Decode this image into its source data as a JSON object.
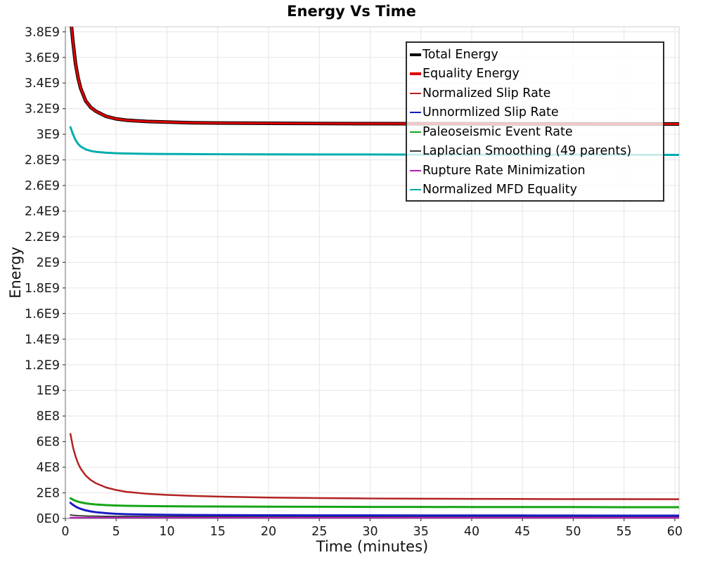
{
  "chart_data": {
    "type": "line",
    "title": "Energy Vs Time",
    "xlabel": "Time (minutes)",
    "ylabel": "Energy",
    "xlim": [
      0,
      60.42
    ],
    "ylim": [
      0,
      3840000000.0
    ],
    "grid": true,
    "grid_color": "#e5e5e5",
    "spine_color": "#999999",
    "box_color": "#d4d4d4",
    "tick_color": "#444444",
    "x_ticks": [
      0,
      5,
      10,
      15,
      20,
      25,
      30,
      35,
      40,
      45,
      50,
      55,
      60
    ],
    "x_tick_labels": [
      "0",
      "5",
      "10",
      "15",
      "20",
      "25",
      "30",
      "35",
      "40",
      "45",
      "50",
      "55",
      "60"
    ],
    "y_ticks": [
      0,
      200000000.0,
      400000000.0,
      600000000.0,
      800000000.0,
      1000000000.0,
      1200000000.0,
      1400000000.0,
      1600000000.0,
      1800000000.0,
      2000000000.0,
      2200000000.0,
      2400000000.0,
      2600000000.0,
      2800000000.0,
      3000000000.0,
      3200000000.0,
      3400000000.0,
      3600000000.0,
      3800000000.0
    ],
    "y_tick_labels": [
      "0E0",
      "2E8",
      "4E8",
      "6E8",
      "8E8",
      "1E9",
      "1.2E9",
      "1.4E9",
      "1.6E9",
      "1.8E9",
      "2E9",
      "2.2E9",
      "2.4E9",
      "2.6E9",
      "2.8E9",
      "3E9",
      "3.2E9",
      "3.4E9",
      "3.6E9",
      "3.8E9"
    ],
    "legend": {
      "position": "upper-right-inside"
    },
    "x": [
      0.5,
      0.75,
      1,
      1.25,
      1.5,
      2,
      2.5,
      3,
      4,
      5,
      6,
      8,
      10,
      12.5,
      15,
      20,
      25,
      30,
      35,
      40,
      45,
      50,
      55,
      60,
      60.4
    ],
    "draw_order": [
      5,
      6,
      3,
      4,
      2,
      7,
      0,
      1
    ],
    "series": [
      {
        "name": "Total Energy",
        "color": "#000000",
        "width": 5,
        "thick_swatch": true,
        "y": [
          3920000000.0,
          3720000000.0,
          3550000000.0,
          3440000000.0,
          3360000000.0,
          3260000000.0,
          3210000000.0,
          3180000000.0,
          3140000000.0,
          3120000000.0,
          3110000000.0,
          3100000000.0,
          3095000000.0,
          3090000000.0,
          3088000000.0,
          3086000000.0,
          3084000000.0,
          3083000000.0,
          3082000000.0,
          3082000000.0,
          3081000000.0,
          3081000000.0,
          3080000000.0,
          3080000000.0,
          3080000000.0
        ]
      },
      {
        "name": "Equality Energy",
        "color": "#dd0000",
        "width": 3,
        "thick_swatch": true,
        "y": [
          3920000000.0,
          3720000000.0,
          3550000000.0,
          3440000000.0,
          3360000000.0,
          3260000000.0,
          3210000000.0,
          3180000000.0,
          3140000000.0,
          3120000000.0,
          3110000000.0,
          3100000000.0,
          3095000000.0,
          3090000000.0,
          3088000000.0,
          3086000000.0,
          3084000000.0,
          3083000000.0,
          3082000000.0,
          3082000000.0,
          3081000000.0,
          3081000000.0,
          3080000000.0,
          3080000000.0,
          3080000000.0
        ]
      },
      {
        "name": "Normalized Slip Rate",
        "color": "#b22222",
        "width": 2.5,
        "thick_swatch": false,
        "y": [
          660000000.0,
          555000000.0,
          485000000.0,
          430000000.0,
          390000000.0,
          335000000.0,
          300000000.0,
          275000000.0,
          242000000.0,
          222000000.0,
          208000000.0,
          193000000.0,
          184000000.0,
          176000000.0,
          171000000.0,
          163000000.0,
          159000000.0,
          156000000.0,
          154000000.0,
          153000000.0,
          152000000.0,
          151000000.0,
          151000000.0,
          150000000.0,
          150000000.0
        ]
      },
      {
        "name": "Unnormlized Slip Rate",
        "color": "#1a1ac4",
        "width": 3,
        "thick_swatch": false,
        "y": [
          122000000.0,
          106000000.0,
          93000000.0,
          83000000.0,
          75000000.0,
          63000000.0,
          55000000.0,
          49000000.0,
          41000000.0,
          36000000.0,
          33000000.0,
          30000000.0,
          28000000.0,
          27000000.0,
          26000000.0,
          25000000.0,
          24000000.0,
          24000000.0,
          23500000.0,
          23000000.0,
          23000000.0,
          22500000.0,
          22000000.0,
          22000000.0,
          22000000.0
        ]
      },
      {
        "name": "Paleoseismic Event Rate",
        "color": "#16a516",
        "width": 3,
        "thick_swatch": false,
        "y": [
          158000000.0,
          147000000.0,
          138000000.0,
          131000000.0,
          126000000.0,
          118000000.0,
          113000000.0,
          109000000.0,
          104000000.0,
          101000000.0,
          99000000.0,
          97000000.0,
          95000000.0,
          94000000.0,
          93000000.0,
          92000000.0,
          91000000.0,
          90000000.0,
          90000000.0,
          89000000.0,
          89000000.0,
          89000000.0,
          88000000.0,
          88000000.0,
          88000000.0
        ]
      },
      {
        "name": "Laplacian Smoothing (49 parents)",
        "color": "#3c3c3c",
        "width": 2,
        "thick_swatch": false,
        "y": [
          28000000.0,
          25000000.0,
          23000000.0,
          21500000.0,
          20500000.0,
          19000000.0,
          18000000.0,
          17500000.0,
          16500000.0,
          16000000.0,
          15500000.0,
          15000000.0,
          14500000.0,
          14000000.0,
          14000000.0,
          13500000.0,
          13000000.0,
          13000000.0,
          13000000.0,
          12500000.0,
          12500000.0,
          12500000.0,
          12000000.0,
          12000000.0,
          12000000.0
        ]
      },
      {
        "name": "Rupture Rate Minimization",
        "color": "#b520b5",
        "width": 2.5,
        "thick_swatch": false,
        "y": [
          6000000.0,
          5500000.0,
          5200000.0,
          5000000.0,
          4900000.0,
          4700000.0,
          4600000.0,
          4500000.0,
          4400000.0,
          4300000.0,
          4300000.0,
          4200000.0,
          4200000.0,
          4100000.0,
          4100000.0,
          4000000.0,
          4000000.0,
          4000000.0,
          4000000.0,
          4000000.0,
          4000000.0,
          4000000.0,
          4000000.0,
          4000000.0,
          4000000.0
        ]
      },
      {
        "name": "Normalized MFD Equality",
        "color": "#00adad",
        "width": 3,
        "thick_swatch": false,
        "y": [
          3055000000.0,
          3000000000.0,
          2955000000.0,
          2925000000.0,
          2905000000.0,
          2882000000.0,
          2870000000.0,
          2863000000.0,
          2856000000.0,
          2852000000.0,
          2850000000.0,
          2847000000.0,
          2846000000.0,
          2845000000.0,
          2844000000.0,
          2843000000.0,
          2842000000.0,
          2842000000.0,
          2841000000.0,
          2841000000.0,
          2840000000.0,
          2840000000.0,
          2840000000.0,
          2839000000.0,
          2839000000.0
        ]
      }
    ]
  }
}
